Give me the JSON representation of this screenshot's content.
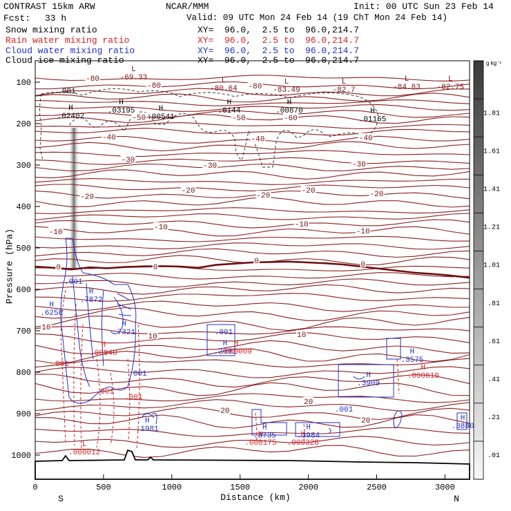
{
  "header": {
    "model": "CONTRAST 15km ARW",
    "center": "NCAR/MMM",
    "init": "Init: 00 UTC Sun 23 Feb 14",
    "fcst_label": "Fcst:",
    "fcst_value": "33 h",
    "valid": "Valid: 09 UTC Mon 24 Feb 14 (19 ChT Mon 24 Feb 14)",
    "fields": [
      {
        "name": "Snow mixing ratio",
        "xy": "XY=  96.0,  2.5 to  96.0,214.7",
        "color": "#000000"
      },
      {
        "name": "Rain water mixing ratio",
        "xy": "XY=  96.0,  2.5 to  96.0,214.7",
        "color": "#d42020"
      },
      {
        "name": "Cloud water mixing ratio",
        "xy": "XY=  96.0,  2.5 to  96.0,214.7",
        "color": "#2030c8"
      },
      {
        "name": "Cloud ice mixing ratio",
        "xy": "XY=  96.0,  2.5 to  96.0,214.7",
        "color": "#000000"
      }
    ]
  },
  "colorbar": {
    "unit": "g kg⁻¹",
    "labels": [
      "1.81",
      "1.61",
      "1.41",
      "1.21",
      "1.01",
      ".81",
      ".61",
      ".41",
      ".21",
      ".01"
    ]
  },
  "chart_data": {
    "type": "contour-cross-section",
    "xlabel": "Distance (km)",
    "ylabel": "Pressure (hPa)",
    "xlim": [
      0,
      3180
    ],
    "ylim": [
      1030,
      50
    ],
    "xticks": [
      0,
      500,
      1000,
      1500,
      2000,
      2500,
      3000
    ],
    "xtick_labels": [
      "0",
      "500",
      "1000",
      "1500",
      "2000",
      "2500",
      "3000"
    ],
    "yticks": [
      100,
      200,
      300,
      400,
      500,
      600,
      700,
      800,
      900,
      1000
    ],
    "ytick_labels": [
      "100",
      "200",
      "300",
      "400",
      "500",
      "600",
      "700",
      "800",
      "900",
      "1000"
    ],
    "endpoints": {
      "left": "S",
      "right": "N"
    },
    "temperature_contours": [
      {
        "label": "-80",
        "x": 420,
        "p": 90
      },
      {
        "label": "-80",
        "x": 870,
        "p": 107
      },
      {
        "label": "-80",
        "x": 1610,
        "p": 108
      },
      {
        "label": "-60",
        "x": 1870,
        "p": 185
      },
      {
        "label": "-50",
        "x": 760,
        "p": 184
      },
      {
        "label": "-50",
        "x": 1490,
        "p": 185
      },
      {
        "label": "-40",
        "x": 540,
        "p": 232
      },
      {
        "label": "-40",
        "x": 1630,
        "p": 236
      },
      {
        "label": "-40",
        "x": 2420,
        "p": 233
      },
      {
        "label": "-30",
        "x": 680,
        "p": 286
      },
      {
        "label": "-30",
        "x": 1280,
        "p": 300
      },
      {
        "label": "-30",
        "x": 2370,
        "p": 297
      },
      {
        "label": "-20",
        "x": 380,
        "p": 375
      },
      {
        "label": "-20",
        "x": 1120,
        "p": 360
      },
      {
        "label": "-20",
        "x": 1670,
        "p": 372
      },
      {
        "label": "-20",
        "x": 2000,
        "p": 360
      },
      {
        "label": "-20",
        "x": 2500,
        "p": 368
      },
      {
        "label": "-10",
        "x": 150,
        "p": 460
      },
      {
        "label": "-10",
        "x": 920,
        "p": 448
      },
      {
        "label": "-10",
        "x": 1950,
        "p": 442
      },
      {
        "label": "-10",
        "x": 2400,
        "p": 458
      },
      {
        "label": "0",
        "x": 170,
        "p": 545
      },
      {
        "label": "0",
        "x": 880,
        "p": 545
      },
      {
        "label": "0",
        "x": 1620,
        "p": 530
      },
      {
        "label": "0",
        "x": 2400,
        "p": 538
      },
      {
        "label": "10",
        "x": 80,
        "p": 690
      },
      {
        "label": "10",
        "x": 860,
        "p": 712
      },
      {
        "label": "10",
        "x": 1950,
        "p": 708
      },
      {
        "label": "20",
        "x": 1390,
        "p": 892
      },
      {
        "label": "20",
        "x": 2000,
        "p": 870
      },
      {
        "label": "20",
        "x": 2420,
        "p": 915
      }
    ],
    "extremes": [
      {
        "type": "L",
        "value": "-69.33",
        "x": 720,
        "p": 80,
        "color": "#7a1414"
      },
      {
        "type": "L",
        "value": "-80.64",
        "x": 1380,
        "p": 107,
        "color": "#7a1414"
      },
      {
        "type": "L",
        "value": "-83.49",
        "x": 1840,
        "p": 110,
        "color": "#7a1414"
      },
      {
        "type": "L",
        "value": "-82.7",
        "x": 2260,
        "p": 110,
        "color": "#7a1414"
      },
      {
        "type": "L",
        "value": "-84.83",
        "x": 2720,
        "p": 103,
        "color": "#7a1414"
      },
      {
        "type": "L",
        "value": "-82.75",
        "x": 3040,
        "p": 103,
        "color": "#7a1414"
      },
      {
        "type": "H",
        "value": ".02402",
        "x": 260,
        "p": 173,
        "color": "#000000"
      },
      {
        "type": "H",
        "value": ".03195",
        "x": 630,
        "p": 160,
        "color": "#000000"
      },
      {
        "type": "H",
        "value": ".00541",
        "x": 920,
        "p": 175,
        "color": "#000000"
      },
      {
        "type": "H",
        "value": ".0144",
        "x": 1420,
        "p": 160,
        "color": "#000000"
      },
      {
        "type": "H",
        "value": ".00870",
        "x": 1860,
        "p": 160,
        "color": "#000000"
      },
      {
        "type": "H",
        "value": ".01165",
        "x": 2470,
        "p": 181,
        "color": "#000000"
      },
      {
        "type": "H",
        "value": ".7872",
        "x": 410,
        "p": 617,
        "color": "#2030c8"
      },
      {
        "type": "H",
        "value": ".6258",
        "x": 120,
        "p": 648,
        "color": "#2030c8"
      },
      {
        "type": "H",
        "value": ".7321",
        "x": 650,
        "p": 695,
        "color": "#2030c8"
      },
      {
        "type": "H",
        "value": ".2091",
        "x": 1390,
        "p": 742,
        "color": "#2030c8"
      },
      {
        "type": "H",
        "value": ".3575",
        "x": 2760,
        "p": 762,
        "color": "#2030c8"
      },
      {
        "type": "H",
        "value": ".3909",
        "x": 2440,
        "p": 818,
        "color": "#2030c8"
      },
      {
        "type": "H",
        "value": ".1981",
        "x": 820,
        "p": 928,
        "color": "#2030c8"
      },
      {
        "type": "H",
        "value": ".3735",
        "x": 1680,
        "p": 944,
        "color": "#2030c8"
      },
      {
        "type": "H",
        "value": ".3984",
        "x": 2000,
        "p": 944,
        "color": "#2030c8"
      },
      {
        "type": "H",
        "value": ".3880",
        "x": 3130,
        "p": 922,
        "color": "#2030c8"
      },
      {
        "type": "H",
        "value": ".000009",
        "x": 1470,
        "p": 742,
        "color": "#d42020"
      },
      {
        "type": "H",
        "value": ".000610",
        "x": 2840,
        "p": 800,
        "color": "#d42020"
      },
      {
        "type": "H",
        "value": ".000175",
        "x": 1650,
        "p": 962,
        "color": "#d42020"
      },
      {
        "type": "H",
        "value": ".000328",
        "x": 1960,
        "p": 962,
        "color": "#d42020"
      },
      {
        "type": "L",
        "value": ".000012",
        "x": 360,
        "p": 985,
        "color": "#d42020"
      },
      {
        "type": "H",
        "value": ".00940",
        "x": 500,
        "p": 745,
        "color": "#d42020"
      }
    ],
    "cloud_labels": [
      {
        "label": ".001",
        "x": 280,
        "p": 580,
        "color": "#2030c8"
      },
      {
        "label": ".001",
        "x": 1380,
        "p": 702,
        "color": "#2030c8"
      },
      {
        "label": ".001",
        "x": 750,
        "p": 802,
        "color": "#2030c8"
      },
      {
        "label": ".001",
        "x": 2260,
        "p": 888,
        "color": "#2030c8"
      },
      {
        "label": ".001",
        "x": 180,
        "p": 778,
        "color": "#d42020"
      },
      {
        "label": ".001",
        "x": 510,
        "p": 845,
        "color": "#d42020"
      },
      {
        "label": ".001",
        "x": 720,
        "p": 858,
        "color": "#d42020"
      },
      {
        "label": ".001",
        "x": 230,
        "p": 120,
        "color": "#000000"
      }
    ],
    "surface_pressure_hPa": 1010
  }
}
